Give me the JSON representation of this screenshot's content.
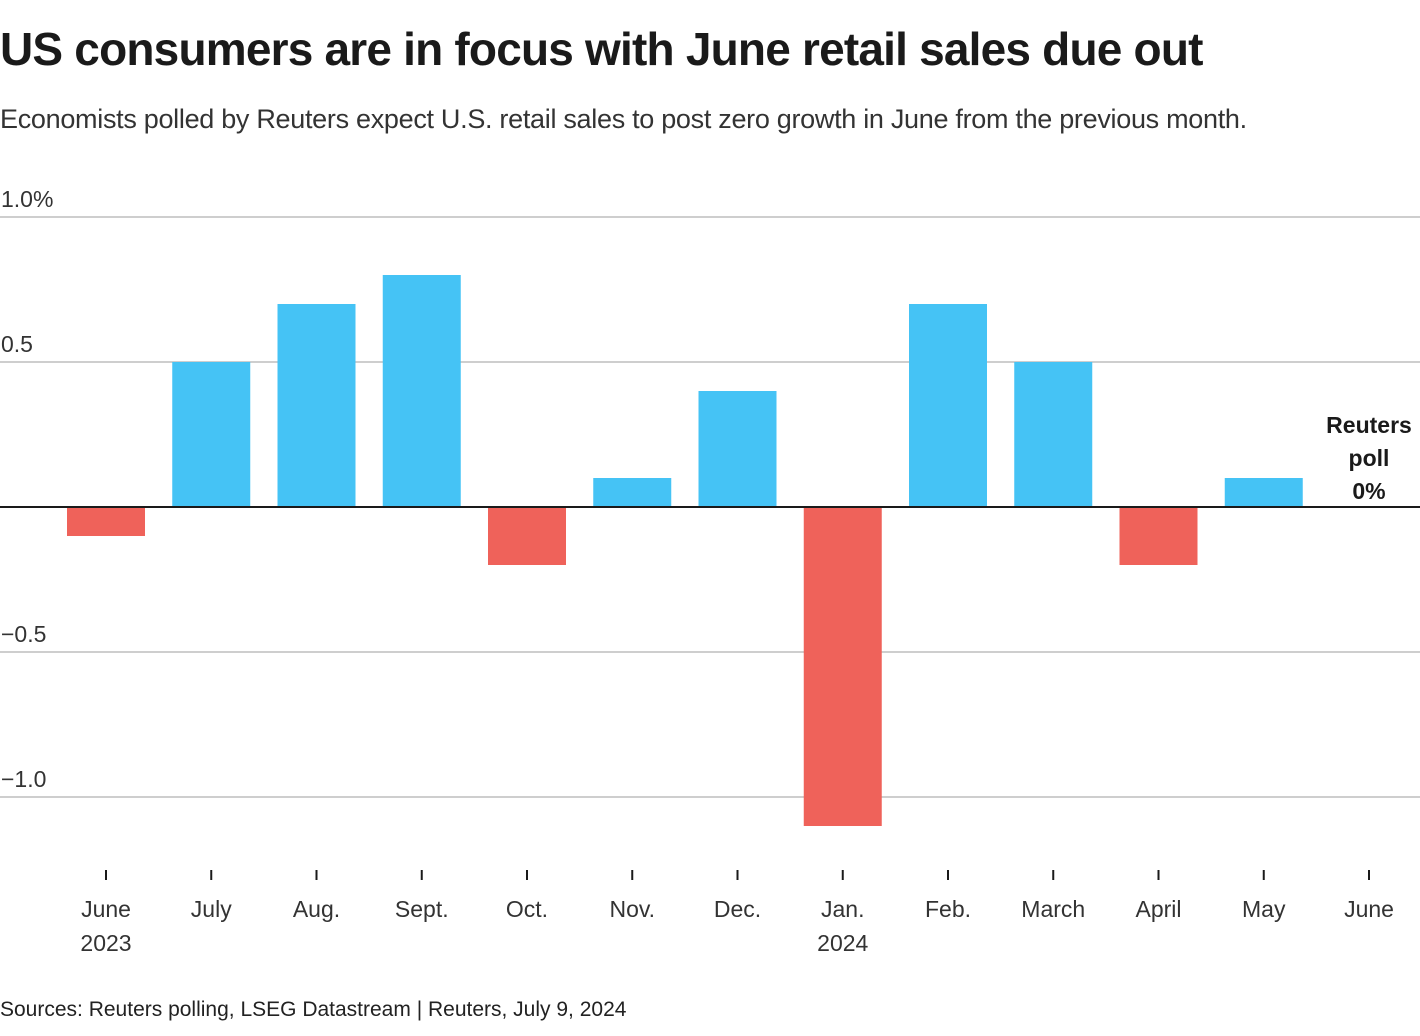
{
  "title": "US consumers are in focus with June retail sales due out",
  "subtitle": "Economists polled by Reuters expect U.S. retail sales to post zero growth in June from the previous month.",
  "footer": "Sources: Reuters polling, LSEG Datastream | Reuters, July 9, 2024",
  "colors": {
    "positive": "#45c3f5",
    "negative": "#ef625a",
    "grid": "#bdbdbd",
    "zero_line": "#1a1a1a"
  },
  "chart_data": {
    "type": "bar",
    "title": "US consumers are in focus with June retail sales due out",
    "xlabel": "",
    "ylabel": "",
    "unit": "%",
    "ylim": [
      -1.2,
      1.0
    ],
    "yticks": [
      1.0,
      0.5,
      0,
      -0.5,
      -1.0
    ],
    "ytick_labels": [
      "1.0%",
      "0.5",
      "",
      "−0.5",
      "−1.0"
    ],
    "grid": true,
    "categories": [
      "June 2023",
      "July",
      "Aug.",
      "Sept.",
      "Oct.",
      "Nov.",
      "Dec.",
      "Jan. 2024",
      "Feb.",
      "March",
      "April",
      "May",
      "June"
    ],
    "tick_labels": [
      [
        "June",
        "2023"
      ],
      [
        "July"
      ],
      [
        "Aug."
      ],
      [
        "Sept."
      ],
      [
        "Oct."
      ],
      [
        "Nov."
      ],
      [
        "Dec."
      ],
      [
        "Jan.",
        "2024"
      ],
      [
        "Feb."
      ],
      [
        "March"
      ],
      [
        "April"
      ],
      [
        "May"
      ],
      [
        "June"
      ]
    ],
    "values": [
      -0.1,
      0.5,
      0.7,
      0.8,
      -0.2,
      0.1,
      0.4,
      -1.1,
      0.7,
      0.5,
      -0.2,
      0.1,
      0.0
    ],
    "annotations": [
      {
        "category": "June",
        "lines": [
          "Reuters",
          "poll",
          "0%"
        ]
      }
    ]
  }
}
